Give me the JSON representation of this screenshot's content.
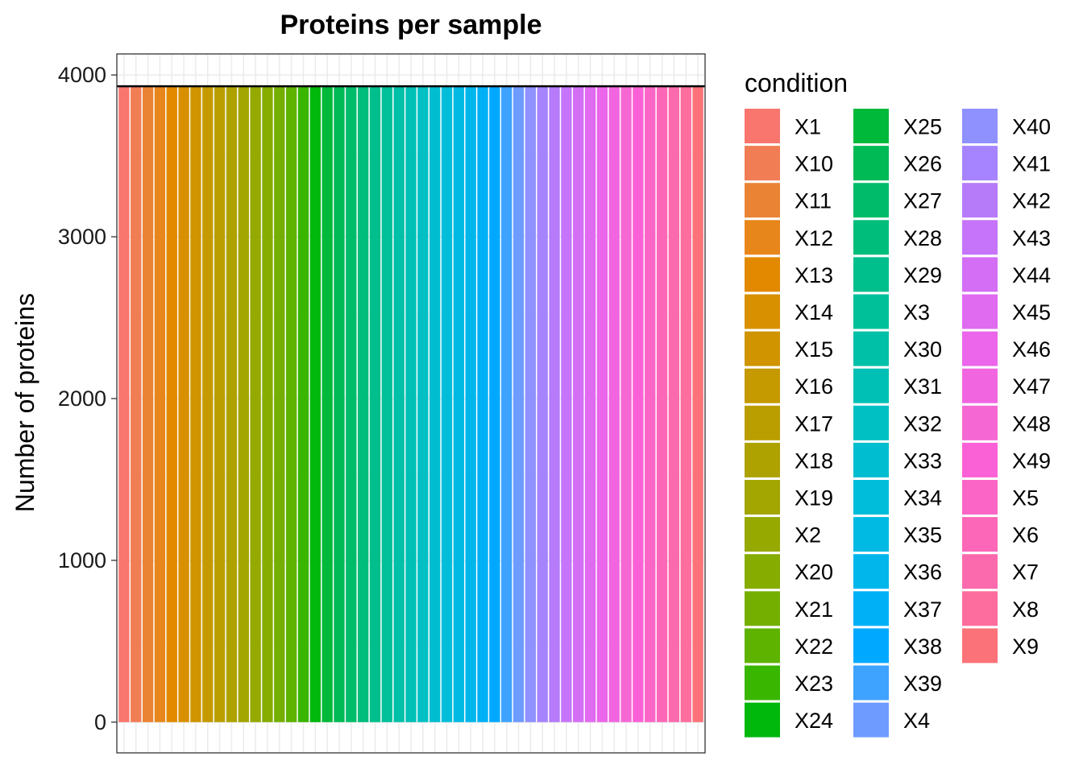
{
  "chart_data": {
    "type": "bar",
    "title": "Proteins per sample",
    "xlabel": "",
    "ylabel": "Number of proteins",
    "ylim": [
      -190,
      4130
    ],
    "yticks": [
      0,
      1000,
      2000,
      3000,
      4000
    ],
    "grid": true,
    "legend_title": "condition",
    "legend_position": "right",
    "legend_columns": 3,
    "reference_line": 3930,
    "categories": [
      "X1",
      "X10",
      "X11",
      "X12",
      "X13",
      "X14",
      "X15",
      "X16",
      "X17",
      "X18",
      "X19",
      "X2",
      "X20",
      "X21",
      "X22",
      "X23",
      "X24",
      "X25",
      "X26",
      "X27",
      "X28",
      "X29",
      "X3",
      "X30",
      "X31",
      "X32",
      "X33",
      "X34",
      "X35",
      "X36",
      "X37",
      "X38",
      "X39",
      "X4",
      "X40",
      "X41",
      "X42",
      "X43",
      "X44",
      "X45",
      "X46",
      "X47",
      "X48",
      "X49",
      "X5",
      "X6",
      "X7",
      "X8",
      "X9"
    ],
    "values": [
      3930,
      3930,
      3930,
      3930,
      3930,
      3930,
      3930,
      3930,
      3930,
      3930,
      3930,
      3930,
      3930,
      3930,
      3930,
      3930,
      3930,
      3930,
      3930,
      3930,
      3930,
      3930,
      3930,
      3930,
      3930,
      3930,
      3930,
      3930,
      3930,
      3930,
      3930,
      3930,
      3930,
      3930,
      3930,
      3930,
      3930,
      3930,
      3930,
      3930,
      3930,
      3930,
      3930,
      3930,
      3930,
      3930,
      3930,
      3930,
      3930
    ],
    "colors": [
      "#F8766D",
      "#F17D55",
      "#EB8335",
      "#E7861B",
      "#E28900",
      "#D89000",
      "#CF9400",
      "#C59900",
      "#BA9E00",
      "#AEA200",
      "#A3A500",
      "#96A900",
      "#86AC00",
      "#74AF00",
      "#5DB300",
      "#39B600",
      "#00B70C",
      "#00B93A",
      "#00BA55",
      "#00BC6A",
      "#00BD7C",
      "#00BF8C",
      "#00C09A",
      "#00C0A7",
      "#00C0B5",
      "#00C0C3",
      "#00BECF",
      "#00BDDA",
      "#00BAE3",
      "#00B6EB",
      "#00B0F6",
      "#00A9FF",
      "#3EA2FF",
      "#6E9BFF",
      "#8F91FF",
      "#A684FF",
      "#B67BF9",
      "#C675FA",
      "#D46EF5",
      "#E06AF0",
      "#EB66EA",
      "#F166E0",
      "#F568D4",
      "#FB61D7",
      "#FA65C6",
      "#FC67B8",
      "#FB6AAD",
      "#FD6D9D",
      "#FB7279"
    ]
  }
}
